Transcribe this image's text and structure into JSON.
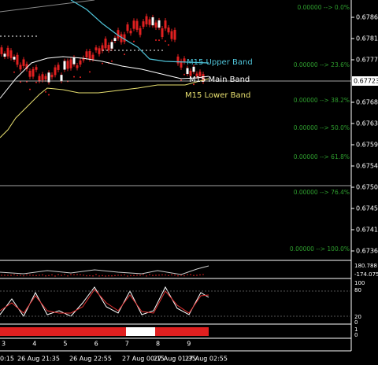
{
  "price_axis": [
    "0.67860",
    "0.67815",
    "0.67770",
    "0.67723",
    "0.67680",
    "0.67635",
    "0.67590",
    "0.67545",
    "0.67500",
    "0.67455",
    "0.67410",
    "0.67365"
  ],
  "fib_levels": [
    "0.00000 --> 0.0%",
    "0.00000 --> 23.6%",
    "0.00000 --> 38.2%",
    "0.00000 --> 50.0%",
    "0.00000 --> 61.8%",
    "0.00000 --> 76.4%",
    "0.00000 --> 100.0%"
  ],
  "bands": {
    "upper": "M15 Upper Band",
    "main": "M15 Main Band",
    "lower": "M15 Lower Band"
  },
  "indicator_scales": {
    "cci": [
      "180.788",
      "-174.075"
    ],
    "stochastic": [
      "100",
      "80",
      "20",
      "0"
    ],
    "strip": [
      "1",
      "0"
    ]
  },
  "x_axis": {
    "days": [
      "3",
      "4",
      "5",
      "6",
      "7",
      "8",
      "9"
    ],
    "times": [
      "0:15",
      "26 Aug 21:35",
      "26 Aug 22:55",
      "27 Aug 00:15",
      "27 Aug 01:35",
      "27 Aug 02:55"
    ]
  }
}
